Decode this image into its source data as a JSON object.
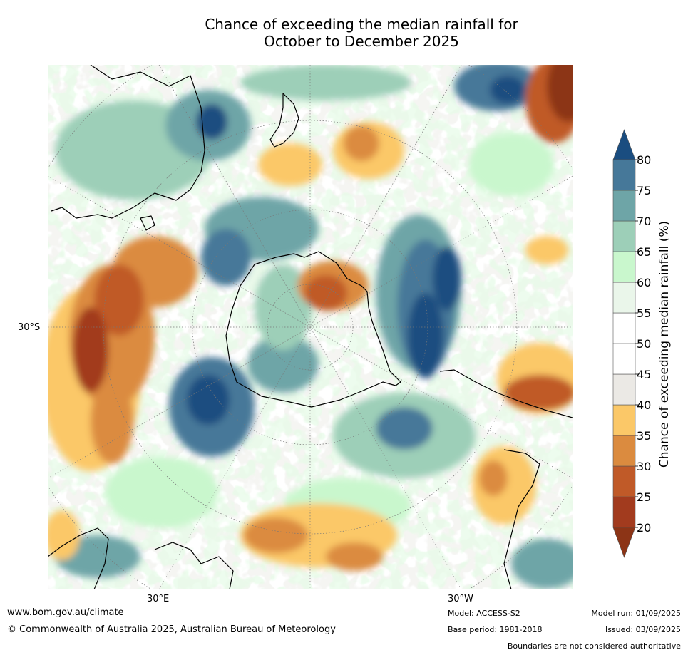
{
  "title": {
    "line1": "Chance of exceeding the median rainfall for",
    "line2": "October to December 2025"
  },
  "map": {
    "lat_labels": [
      "30°S"
    ],
    "lon_labels": [
      "30°E",
      "30°W"
    ],
    "colors": {
      "c20_25": "#a23b1e",
      "c25_30": "#c05a28",
      "c30_35": "#db8b3f",
      "c35_40": "#fbc868",
      "c40_45": "#ebe9e5",
      "c45_55": "#ffffff",
      "c55_60": "#eaf6ea",
      "c60_65": "#c9f7cd",
      "c65_70": "#9dcfb8",
      "c70_75": "#6ea5a7",
      "c75_80": "#467899",
      "c80": "#1a4d80",
      "c_lt20": "#8c3416"
    }
  },
  "colorbar": {
    "title": "Chance of exceeding median rainfall (%)",
    "ticks": [
      "20",
      "25",
      "30",
      "35",
      "40",
      "45",
      "50",
      "55",
      "60",
      "65",
      "70",
      "75",
      "80"
    ]
  },
  "footer": {
    "url": "www.bom.gov.au/climate",
    "copyright": "© Commonwealth of Australia 2025, Australian Bureau of Meteorology",
    "model": "Model: ACCESS-S2",
    "model_run": "Model run: 01/09/2025",
    "base_period": "Base period: 1981-2018",
    "issued": "Issued: 03/09/2025",
    "disclaimer": "Boundaries are not considered authoritative"
  }
}
